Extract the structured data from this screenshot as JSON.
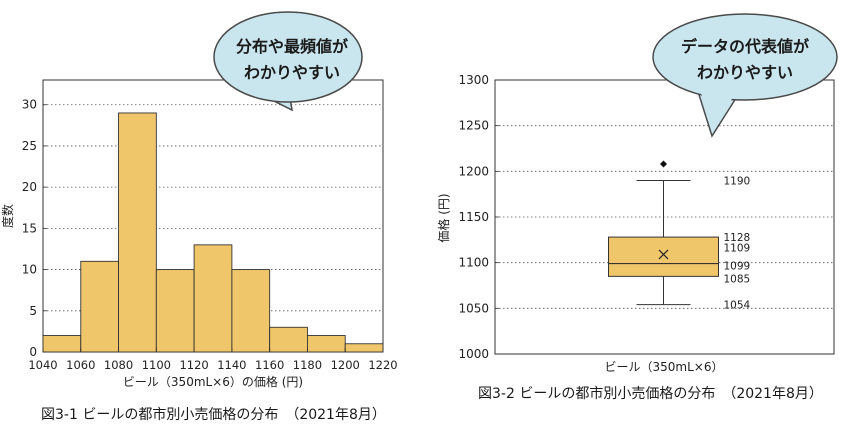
{
  "chart_data": [
    {
      "type": "bar",
      "bin_edges": [
        1040,
        1060,
        1080,
        1100,
        1120,
        1140,
        1160,
        1180,
        1200,
        1220
      ],
      "values": [
        2,
        11,
        29,
        10,
        13,
        10,
        3,
        2,
        1
      ],
      "xlabel": "ビール（350mL×6）の価格 (円)",
      "ylabel": "度数",
      "xlim": [
        1040,
        1220
      ],
      "ylim": [
        0,
        33
      ],
      "xticks": [
        1040,
        1060,
        1080,
        1100,
        1120,
        1140,
        1160,
        1180,
        1200,
        1220
      ],
      "yticks": [
        0,
        5,
        10,
        15,
        20,
        25,
        30
      ],
      "grid": "horizontal-dotted",
      "bar_color": "#f0c66a",
      "callout": [
        "分布や最頻値が",
        "わかりやすい"
      ],
      "caption": "図3-1 ビールの都市別小売価格の分布　（2021年8月）"
    },
    {
      "type": "box",
      "category": "ビール（350mL×6）",
      "ylabel": "価格 (円)",
      "ylim": [
        1000,
        1300
      ],
      "yticks": [
        1000,
        1050,
        1100,
        1150,
        1200,
        1250,
        1300
      ],
      "whisker_low": 1054,
      "q1": 1085,
      "median": 1099,
      "mean": 1109,
      "q3": 1128,
      "whisker_high": 1190,
      "outliers": [
        1208
      ],
      "labels": {
        "whisker_high": "1190",
        "q3": "1128",
        "mean": "1109",
        "median": "1099",
        "q1": "1085",
        "whisker_low": "1054"
      },
      "grid": "horizontal-dotted",
      "box_color": "#f0c66a",
      "callout": [
        "データの代表値が",
        "わかりやすい"
      ],
      "caption": "図3-2 ビールの都市別小売価格の分布　（2021年8月）"
    }
  ]
}
